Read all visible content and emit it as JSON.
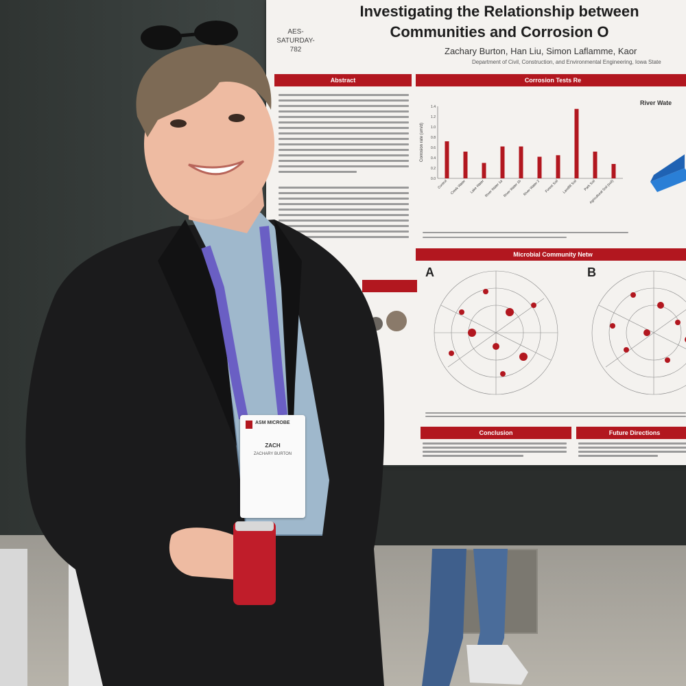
{
  "poster": {
    "title_line1": "Investigating the Relationship between",
    "title_line2": "Communities and Corrosion O",
    "session_code": "AES-SATURDAY-782",
    "authors": "Zachary Burton, Han Liu, Simon Laflamme, Kaor",
    "affiliation": "Department of Civil, Construction, and Environmental Engineering, Iowa State",
    "sections": {
      "abstract": "Abstract",
      "corrosion_results": "Corrosion Tests Re",
      "microbial_network": "Microbial Community Netw",
      "conclusion": "Conclusion",
      "future_directions": "Future Directions"
    },
    "network_labels": [
      "A",
      "B"
    ],
    "river_water_label": "River Wate"
  },
  "chart_data": {
    "type": "bar",
    "ylabel": "Corrosion rate (um/d)",
    "categories": [
      "Control",
      "Creek Water",
      "Lake Water",
      "River Water 1a",
      "River Water 1b",
      "River Water 2",
      "Forest Soil",
      "Landfill Soil",
      "Park Soil",
      "Agricultural Soil (soil)"
    ],
    "values": [
      0.72,
      0.52,
      0.3,
      0.62,
      0.62,
      0.42,
      0.45,
      1.35,
      0.52,
      0.28
    ],
    "ylim": [
      0,
      1.4
    ],
    "yticks": [
      0,
      0.2,
      0.4,
      0.6,
      0.8,
      1.0,
      1.2,
      1.4
    ],
    "color": "#b2171f"
  },
  "badge": {
    "org": "ASM MICROBE",
    "first_name": "ZACH",
    "full_name": "ZACHARY BURTON"
  },
  "colors": {
    "poster_accent": "#b2171f",
    "jacket": "#1b1b1c",
    "lanyard": "#6a5fc4"
  }
}
